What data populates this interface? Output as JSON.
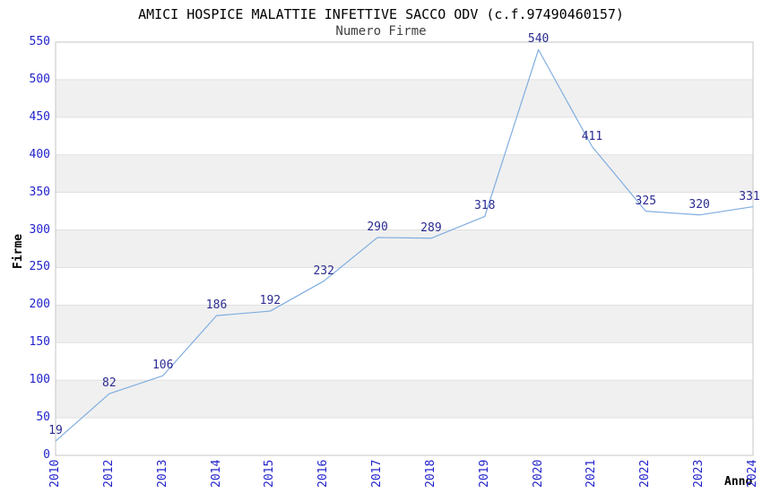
{
  "chart_data": {
    "type": "line",
    "title": "AMICI HOSPICE MALATTIE INFETTIVE SACCO ODV (c.f.97490460157)",
    "subtitle": "Numero Firme",
    "xlabel": "Anno",
    "ylabel": "Firme",
    "x": [
      "2010",
      "2012",
      "2013",
      "2014",
      "2015",
      "2016",
      "2017",
      "2018",
      "2019",
      "2020",
      "2021",
      "2022",
      "2023",
      "2024"
    ],
    "values": [
      19,
      82,
      106,
      186,
      192,
      232,
      290,
      289,
      318,
      540,
      411,
      325,
      320,
      331
    ],
    "ylim": [
      0,
      550
    ],
    "ytick_step": 50,
    "ytick_labels": [
      "0",
      "50",
      "100",
      "150",
      "200",
      "250",
      "300",
      "350",
      "400",
      "450",
      "500",
      "550"
    ],
    "legend": "none",
    "grid": "horizontal gridlines with alternating gray bands",
    "marker": "none",
    "colors": {
      "title": "#000000",
      "subtitle": "#404040",
      "axis_label": "#000000",
      "tick_label": "#2222cc",
      "data_label": "#2b2b91",
      "line": "#7fade0",
      "band": "#f0f0f0",
      "grid": "#e0e0e0",
      "border": "#c4c4c4",
      "background": "#ffffff"
    }
  }
}
